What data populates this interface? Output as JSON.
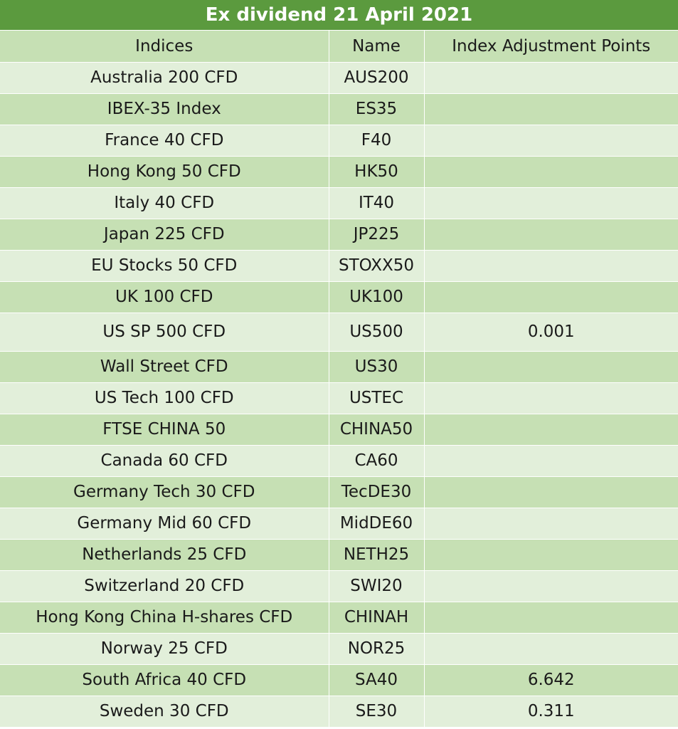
{
  "title": "Ex dividend 21 April 2021",
  "headers": {
    "indices": "Indices",
    "name": "Name",
    "points": "Index Adjustment Points"
  },
  "rows": [
    {
      "index": "Australia 200 CFD",
      "name": "AUS200",
      "points": ""
    },
    {
      "index": "IBEX-35 Index",
      "name": "ES35",
      "points": ""
    },
    {
      "index": "France 40 CFD",
      "name": "F40",
      "points": ""
    },
    {
      "index": "Hong Kong 50 CFD",
      "name": "HK50",
      "points": ""
    },
    {
      "index": "Italy 40 CFD",
      "name": "IT40",
      "points": ""
    },
    {
      "index": "Japan 225 CFD",
      "name": "JP225",
      "points": ""
    },
    {
      "index": "EU Stocks 50 CFD",
      "name": "STOXX50",
      "points": ""
    },
    {
      "index": "UK 100 CFD",
      "name": "UK100",
      "points": ""
    },
    {
      "index": "US SP 500 CFD",
      "name": "US500",
      "points": "0.001"
    },
    {
      "index": "Wall Street CFD",
      "name": "US30",
      "points": ""
    },
    {
      "index": "US Tech 100 CFD",
      "name": "USTEC",
      "points": ""
    },
    {
      "index": "FTSE CHINA 50",
      "name": "CHINA50",
      "points": ""
    },
    {
      "index": "Canada 60 CFD",
      "name": "CA60",
      "points": ""
    },
    {
      "index": "Germany Tech 30 CFD",
      "name": "TecDE30",
      "points": ""
    },
    {
      "index": "Germany Mid 60 CFD",
      "name": "MidDE60",
      "points": ""
    },
    {
      "index": "Netherlands 25 CFD",
      "name": "NETH25",
      "points": ""
    },
    {
      "index": "Switzerland 20 CFD",
      "name": "SWI20",
      "points": ""
    },
    {
      "index": "Hong Kong China H-shares CFD",
      "name": "CHINAH",
      "points": ""
    },
    {
      "index": "Norway 25 CFD",
      "name": "NOR25",
      "points": ""
    },
    {
      "index": "South Africa 40 CFD",
      "name": "SA40",
      "points": "6.642"
    },
    {
      "index": "Sweden 30 CFD",
      "name": "SE30",
      "points": "0.311"
    }
  ],
  "colors": {
    "title_bg": "#5b9a3e",
    "row_dark": "#c6e0b4",
    "row_light": "#e2efda"
  }
}
